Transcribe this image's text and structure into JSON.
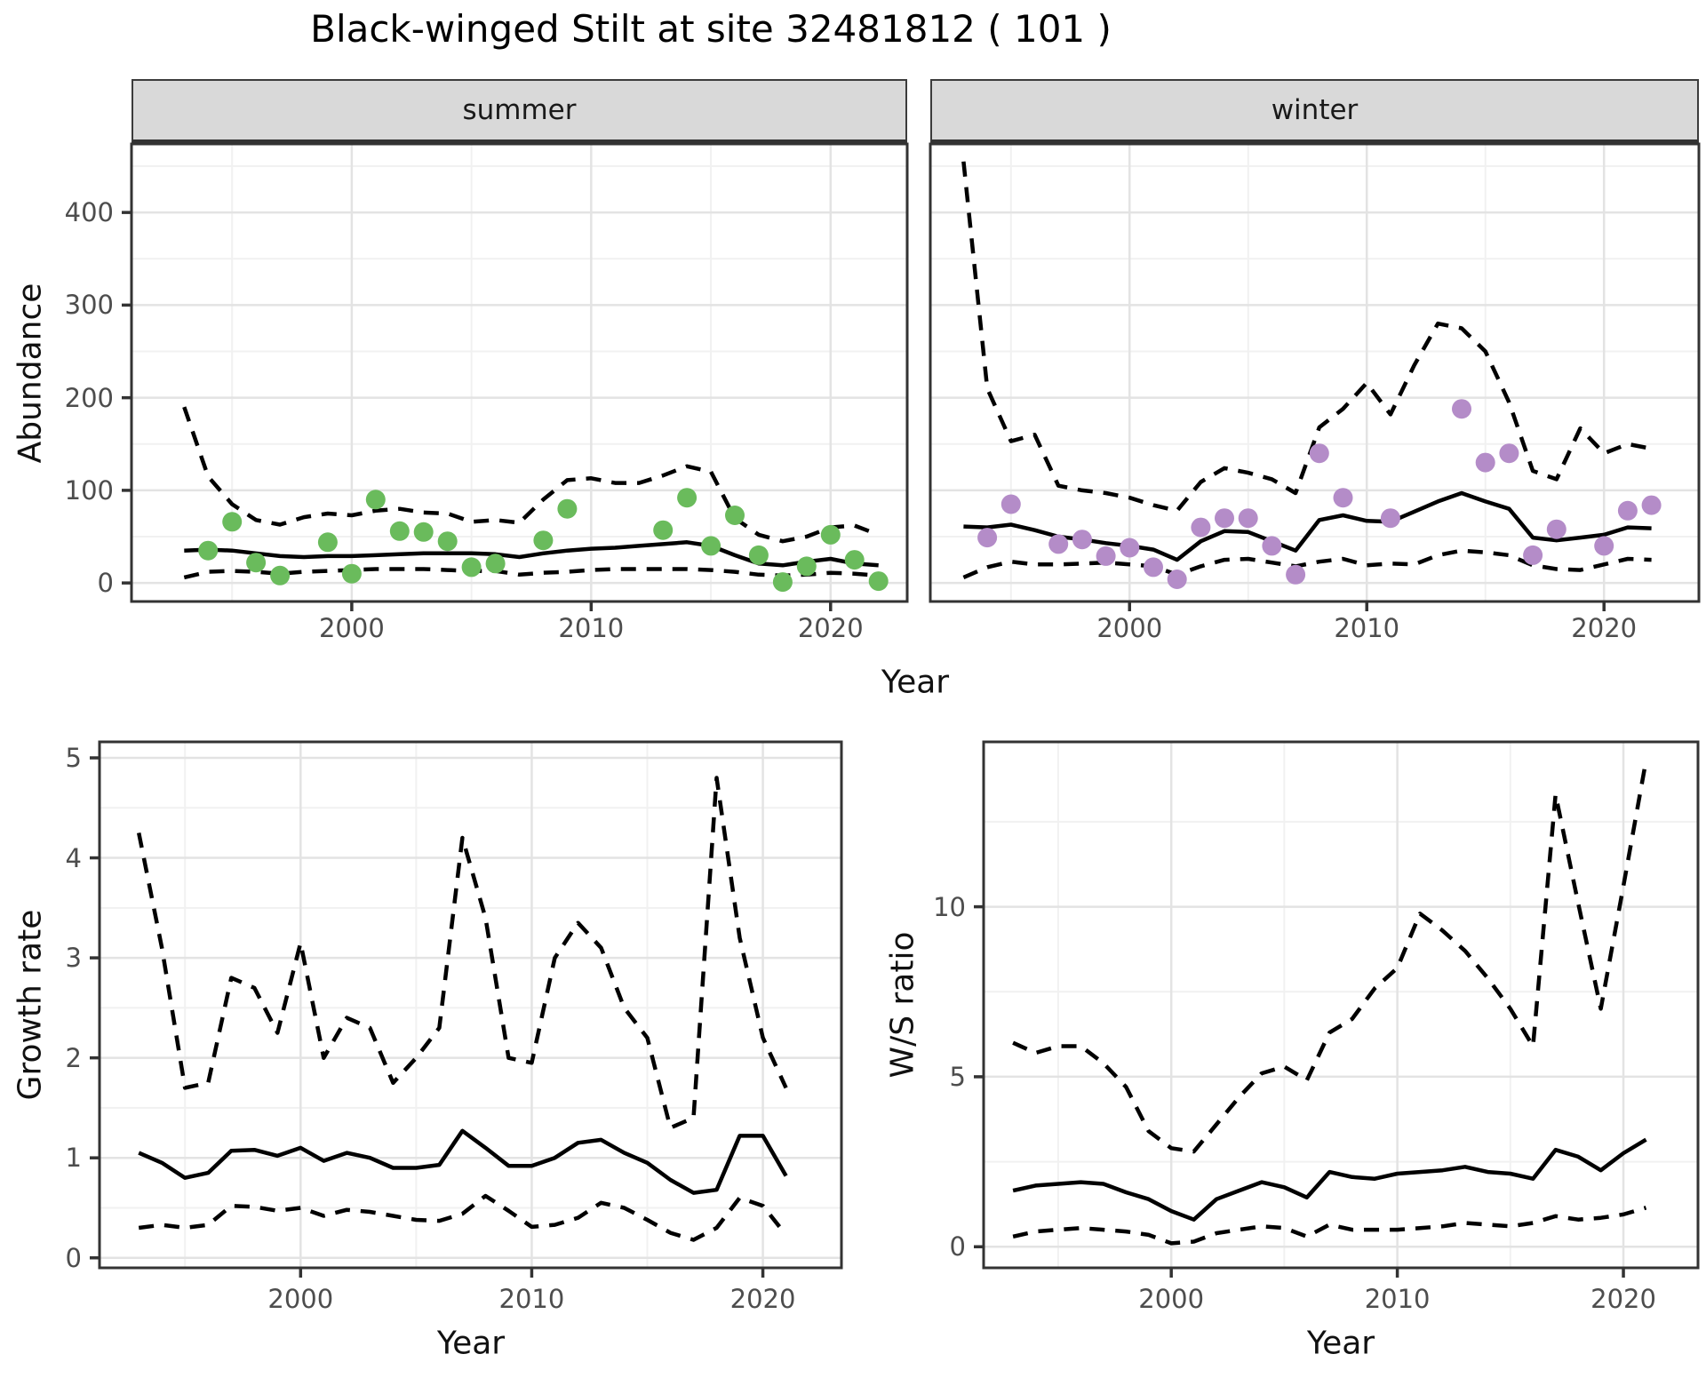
{
  "title": "Black-winged Stilt at site 32481812 ( 101 )",
  "facets": {
    "summer_label": "summer",
    "winter_label": "winter"
  },
  "axis_titles": {
    "abundance": "Abundance",
    "year": "Year",
    "growth": "Growth rate",
    "ws": "W/S ratio"
  },
  "colors": {
    "summer_point": "#6abb5c",
    "winter_point": "#b48cc8",
    "line": "#000000",
    "grid_major": "#e3e3e3",
    "grid_minor": "#f1f1f1",
    "panel_border": "#333333",
    "strip_bg": "#d9d9d9",
    "tick_text": "#4d4d4d"
  },
  "chart_data": [
    {
      "id": "abundance-summer",
      "type": "line",
      "facet_label": "summer",
      "xlabel": "Year",
      "ylabel": "Abundance",
      "xlim": [
        1990.8,
        2023.2
      ],
      "ylim": [
        -20,
        474
      ],
      "xticks": [
        2000,
        2010,
        2020
      ],
      "yticks": [
        0,
        100,
        200,
        300,
        400
      ],
      "x_minor": [
        1995,
        2005,
        2015
      ],
      "y_minor": [
        50,
        150,
        250,
        350,
        450
      ],
      "line_years": [
        1993,
        1994,
        1995,
        1996,
        1997,
        1998,
        1999,
        2000,
        2001,
        2002,
        2003,
        2004,
        2005,
        2006,
        2007,
        2008,
        2009,
        2010,
        2011,
        2012,
        2013,
        2014,
        2015,
        2016,
        2017,
        2018,
        2019,
        2020,
        2021,
        2022
      ],
      "median": [
        35,
        36,
        35,
        32,
        29,
        28,
        29,
        29,
        30,
        31,
        32,
        32,
        32,
        31,
        28,
        32,
        35,
        37,
        38,
        40,
        42,
        44,
        40,
        30,
        21,
        19,
        23,
        26,
        21,
        19
      ],
      "upper": [
        190,
        115,
        85,
        68,
        63,
        71,
        75,
        73,
        78,
        80,
        76,
        75,
        66,
        68,
        65,
        90,
        111,
        113,
        108,
        108,
        116,
        126,
        120,
        70,
        52,
        45,
        50,
        60,
        62,
        52
      ],
      "lower": [
        6,
        12,
        13,
        12,
        10,
        12,
        13,
        14,
        15,
        15,
        15,
        14,
        13,
        13,
        9,
        11,
        12,
        14,
        15,
        15,
        15,
        15,
        14,
        12,
        9,
        8,
        9,
        11,
        10,
        8
      ],
      "obs_years": [
        1994,
        1995,
        1996,
        1997,
        1999,
        2000,
        2001,
        2002,
        2003,
        2004,
        2005,
        2006,
        2008,
        2009,
        2013,
        2014,
        2015,
        2016,
        2017,
        2018,
        2019,
        2020,
        2021,
        2022
      ],
      "obs_values": [
        35,
        66,
        22,
        8,
        44,
        10,
        90,
        56,
        55,
        45,
        17,
        21,
        46,
        80,
        57,
        92,
        40,
        73,
        30,
        1,
        18,
        52,
        25,
        2
      ],
      "point_color": "#6abb5c"
    },
    {
      "id": "abundance-winter",
      "type": "line",
      "facet_label": "winter",
      "xlabel": "Year",
      "ylabel": "Abundance",
      "xlim": [
        1991.6,
        2024.0
      ],
      "ylim": [
        -20,
        474
      ],
      "xticks": [
        2000,
        2010,
        2020
      ],
      "yticks": [
        0,
        100,
        200,
        300,
        400
      ],
      "x_minor": [
        1995,
        2005,
        2015
      ],
      "y_minor": [
        50,
        150,
        250,
        350,
        450
      ],
      "line_years": [
        1993,
        1994,
        1995,
        1996,
        1997,
        1998,
        1999,
        2000,
        2001,
        2002,
        2003,
        2004,
        2005,
        2006,
        2007,
        2008,
        2009,
        2010,
        2011,
        2012,
        2013,
        2014,
        2015,
        2016,
        2017,
        2018,
        2019,
        2020,
        2021,
        2022
      ],
      "median": [
        61,
        60,
        63,
        57,
        50,
        47,
        43,
        40,
        36,
        25,
        45,
        56,
        55,
        45,
        35,
        68,
        73,
        67,
        66,
        77,
        88,
        97,
        88,
        80,
        49,
        46,
        49,
        52,
        60,
        59
      ],
      "upper": [
        455,
        210,
        153,
        160,
        105,
        100,
        97,
        92,
        84,
        78,
        109,
        124,
        119,
        112,
        97,
        168,
        188,
        216,
        182,
        235,
        280,
        275,
        250,
        195,
        121,
        112,
        167,
        140,
        150,
        145
      ],
      "lower": [
        6,
        17,
        23,
        20,
        20,
        21,
        22,
        20,
        18,
        9,
        18,
        25,
        26,
        22,
        18,
        23,
        26,
        19,
        21,
        20,
        30,
        35,
        33,
        30,
        19,
        15,
        14,
        20,
        26,
        25
      ],
      "obs_years": [
        1994,
        1995,
        1997,
        1998,
        1999,
        2000,
        2001,
        2002,
        2003,
        2004,
        2005,
        2006,
        2007,
        2008,
        2009,
        2011,
        2014,
        2015,
        2016,
        2017,
        2018,
        2020,
        2021,
        2022
      ],
      "obs_values": [
        49,
        85,
        42,
        47,
        29,
        38,
        17,
        4,
        60,
        70,
        70,
        40,
        9,
        140,
        92,
        70,
        188,
        130,
        140,
        30,
        58,
        40,
        78,
        84
      ],
      "point_color": "#b48cc8"
    },
    {
      "id": "growth-rate",
      "type": "line",
      "facet_label": "",
      "xlabel": "Year",
      "ylabel": "Growth rate",
      "xlim": [
        1991.3,
        2023.4
      ],
      "ylim": [
        -0.1,
        5.16
      ],
      "xticks": [
        2000,
        2010,
        2020
      ],
      "yticks": [
        0,
        1,
        2,
        3,
        4,
        5
      ],
      "x_minor": [
        1995,
        2005,
        2015
      ],
      "y_minor": [
        0.5,
        1.5,
        2.5,
        3.5,
        4.5
      ],
      "line_years": [
        1993,
        1994,
        1995,
        1996,
        1997,
        1998,
        1999,
        2000,
        2001,
        2002,
        2003,
        2004,
        2005,
        2006,
        2007,
        2008,
        2009,
        2010,
        2011,
        2012,
        2013,
        2014,
        2015,
        2016,
        2017,
        2018,
        2019,
        2020,
        2021
      ],
      "median": [
        1.05,
        0.95,
        0.8,
        0.85,
        1.07,
        1.08,
        1.02,
        1.1,
        0.97,
        1.05,
        1.0,
        0.9,
        0.9,
        0.93,
        1.27,
        1.1,
        0.92,
        0.92,
        1.0,
        1.15,
        1.18,
        1.05,
        0.95,
        0.78,
        0.65,
        0.68,
        1.22,
        1.22,
        0.82
      ],
      "upper": [
        4.25,
        3.1,
        1.7,
        1.75,
        2.8,
        2.7,
        2.25,
        3.15,
        2.0,
        2.4,
        2.3,
        1.75,
        2.0,
        2.3,
        4.2,
        3.4,
        2.0,
        1.95,
        3.0,
        3.35,
        3.1,
        2.5,
        2.2,
        1.3,
        1.4,
        4.8,
        3.2,
        2.2,
        1.7
      ],
      "lower": [
        0.3,
        0.33,
        0.3,
        0.33,
        0.52,
        0.51,
        0.47,
        0.5,
        0.42,
        0.48,
        0.46,
        0.42,
        0.38,
        0.37,
        0.44,
        0.62,
        0.47,
        0.31,
        0.33,
        0.4,
        0.55,
        0.5,
        0.38,
        0.25,
        0.18,
        0.3,
        0.6,
        0.52,
        0.23
      ],
      "obs_years": [],
      "obs_values": [],
      "point_color": "none"
    },
    {
      "id": "ws-ratio",
      "type": "line",
      "facet_label": "",
      "xlabel": "Year",
      "ylabel": "W/S ratio",
      "xlim": [
        1991.7,
        2023.3
      ],
      "ylim": [
        -0.62,
        14.85
      ],
      "xticks": [
        2000,
        2010,
        2020
      ],
      "yticks": [
        0,
        5,
        10
      ],
      "x_minor": [
        1995,
        2005,
        2015
      ],
      "y_minor": [
        2.5,
        7.5,
        12.5
      ],
      "line_years": [
        1993,
        1994,
        1995,
        1996,
        1997,
        1998,
        1999,
        2000,
        2001,
        2002,
        2003,
        2004,
        2005,
        2006,
        2007,
        2008,
        2009,
        2010,
        2011,
        2012,
        2013,
        2014,
        2015,
        2016,
        2017,
        2018,
        2019,
        2020,
        2021
      ],
      "median": [
        1.65,
        1.8,
        1.85,
        1.9,
        1.85,
        1.6,
        1.4,
        1.05,
        0.8,
        1.4,
        1.65,
        1.9,
        1.75,
        1.45,
        2.2,
        2.05,
        2.0,
        2.15,
        2.2,
        2.25,
        2.35,
        2.2,
        2.15,
        2.0,
        2.85,
        2.65,
        2.25,
        2.75,
        3.15
      ],
      "upper": [
        6.0,
        5.7,
        5.9,
        5.9,
        5.4,
        4.7,
        3.4,
        2.9,
        2.8,
        3.6,
        4.4,
        5.1,
        5.3,
        4.9,
        6.3,
        6.7,
        7.6,
        8.2,
        9.8,
        9.3,
        8.7,
        7.9,
        7.0,
        5.9,
        13.3,
        10.1,
        7.0,
        10.6,
        14.3
      ],
      "lower": [
        0.3,
        0.45,
        0.5,
        0.55,
        0.5,
        0.45,
        0.35,
        0.1,
        0.15,
        0.4,
        0.5,
        0.6,
        0.55,
        0.3,
        0.65,
        0.5,
        0.5,
        0.5,
        0.55,
        0.6,
        0.7,
        0.65,
        0.6,
        0.7,
        0.9,
        0.8,
        0.85,
        0.95,
        1.15
      ],
      "obs_years": [],
      "obs_values": [],
      "point_color": "none"
    }
  ]
}
